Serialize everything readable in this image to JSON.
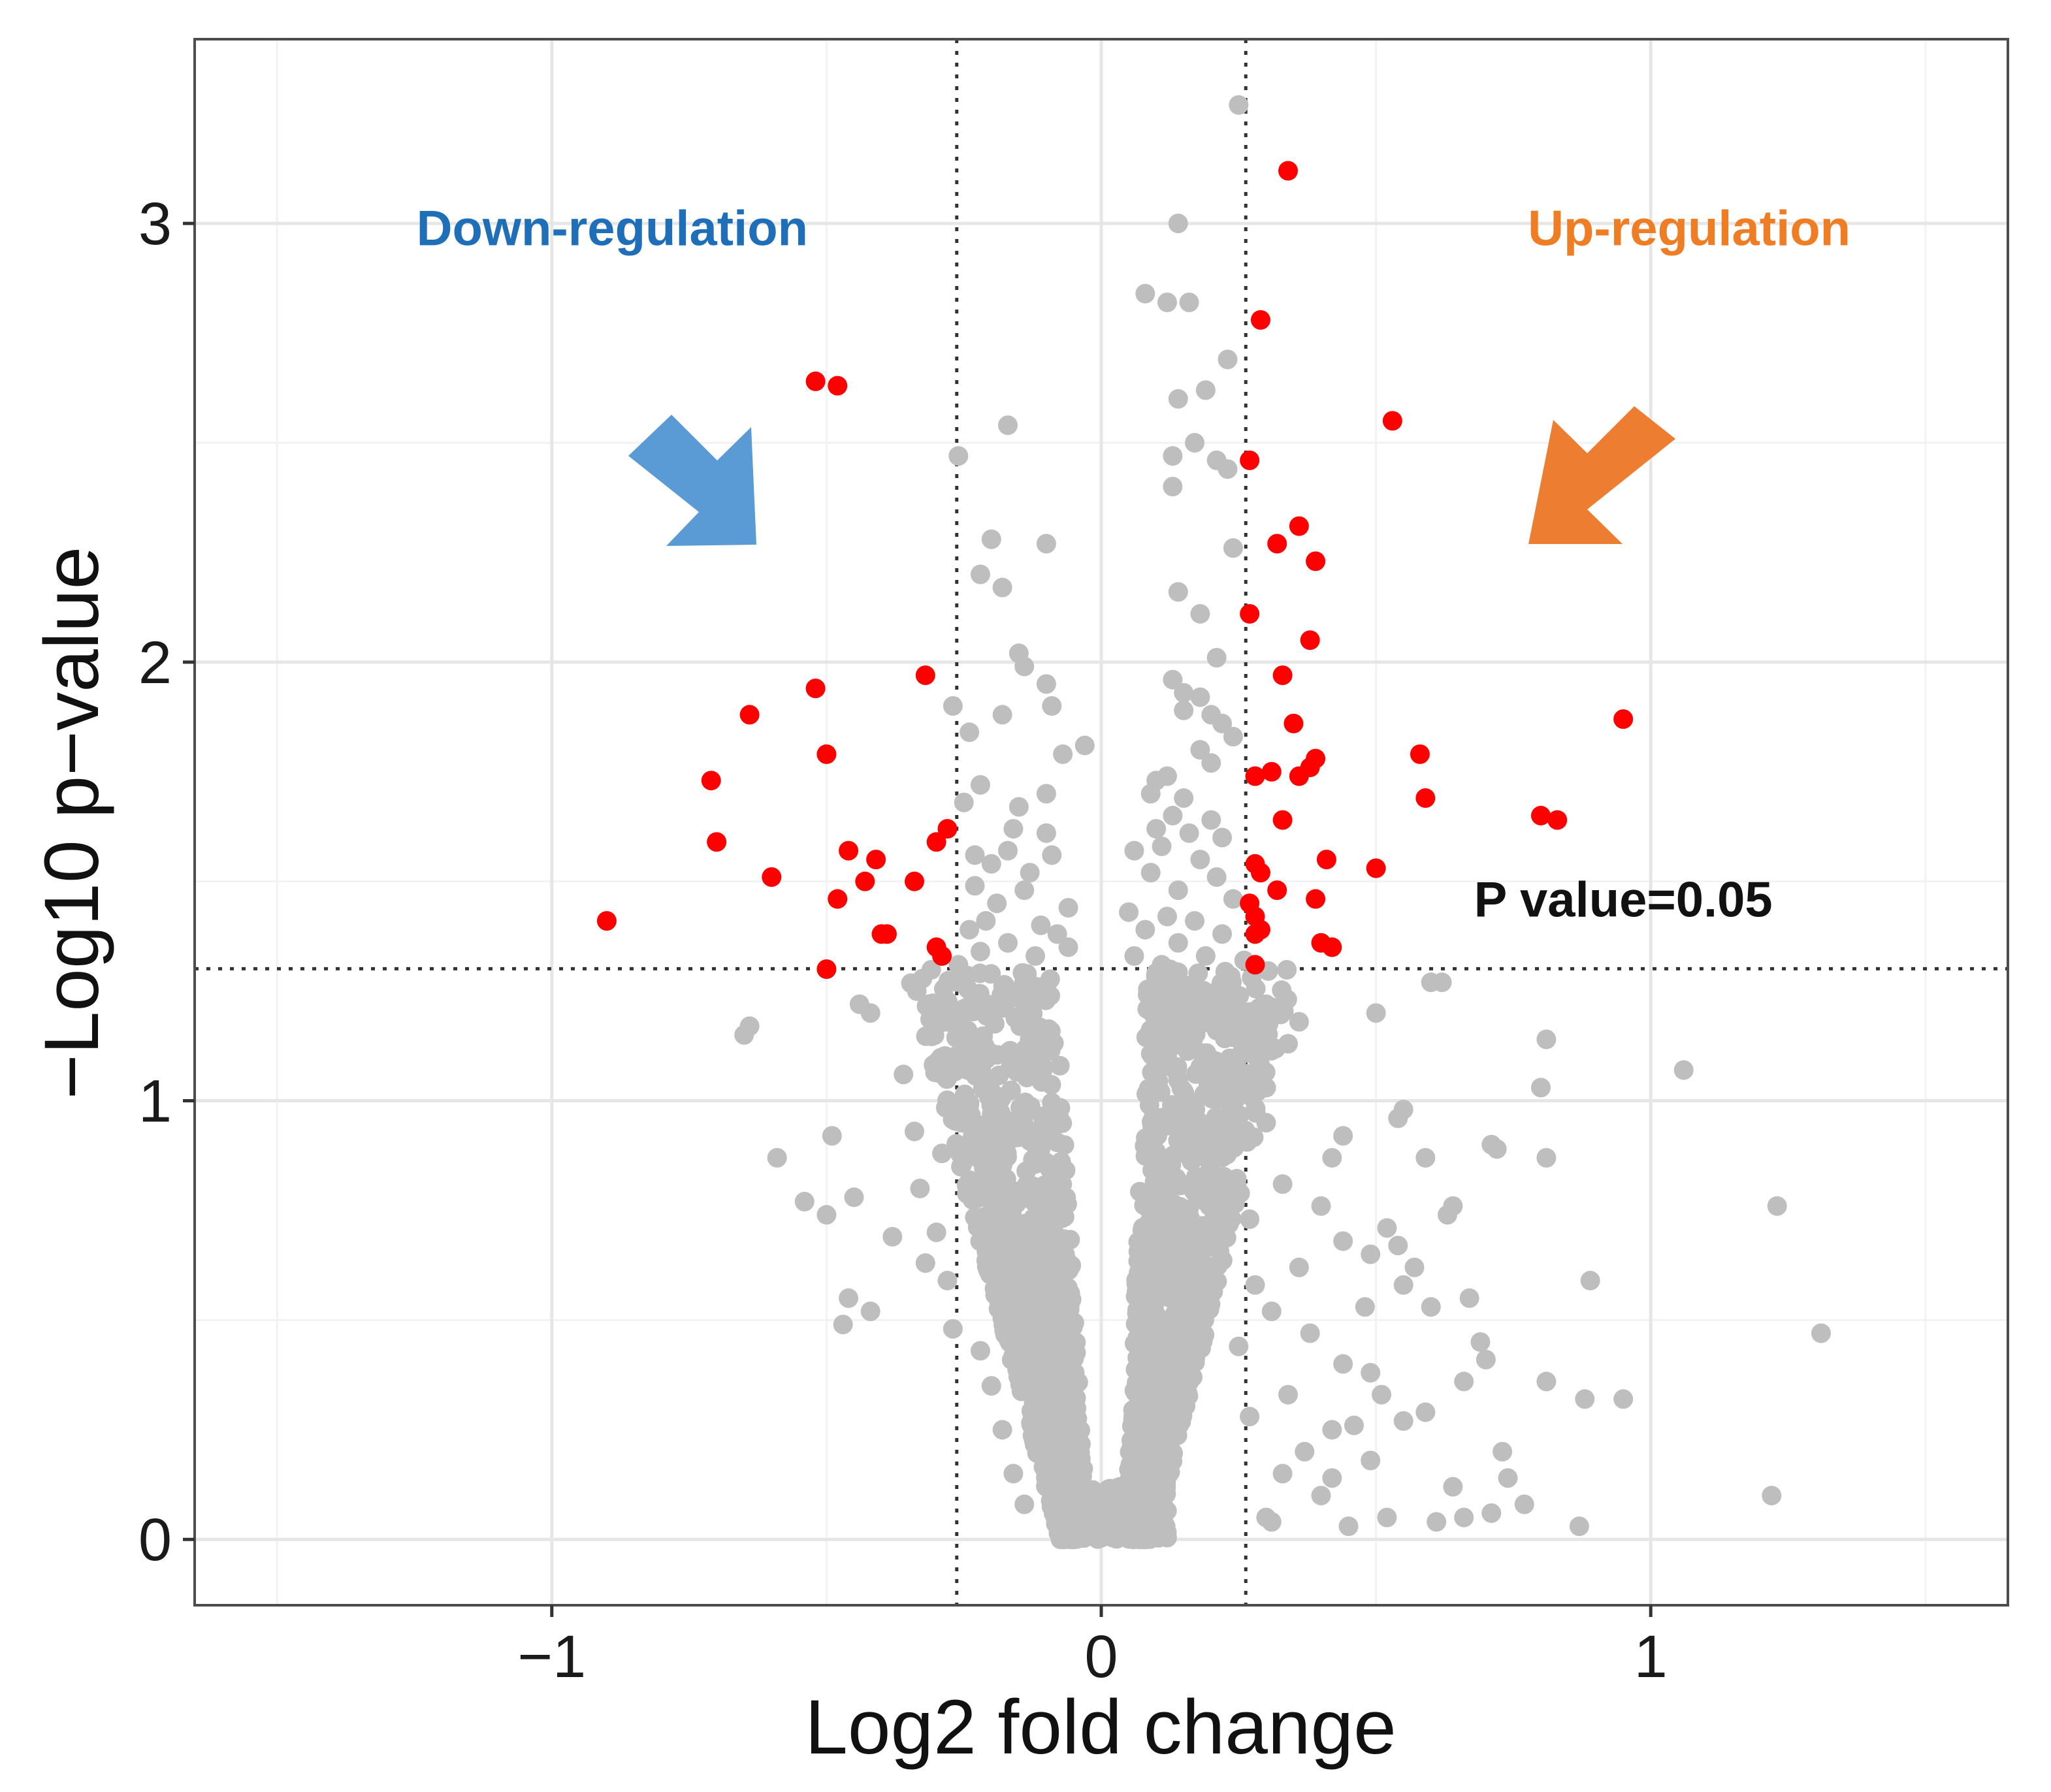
{
  "chart_data": {
    "type": "scatter",
    "title": "",
    "xlabel": "Log2 fold change",
    "ylabel": "−Log10 p−value",
    "xlim": [
      -1.65,
      1.65
    ],
    "ylim": [
      -0.15,
      3.42
    ],
    "x_ticks": [
      -1,
      0,
      1
    ],
    "x_tick_labels": [
      "−1",
      "0",
      "1"
    ],
    "y_ticks": [
      0,
      1,
      2,
      3
    ],
    "y_tick_labels": [
      "0",
      "1",
      "2",
      "3"
    ],
    "x_minor_grid": [
      -1.5,
      -0.5,
      0.5,
      1.5
    ],
    "y_minor_grid": [
      0.5,
      1.5,
      2.5
    ],
    "grid": true,
    "thresholds": {
      "log2fc_low": -0.263,
      "log2fc_high": 0.263,
      "neg_log10_p": 1.301
    },
    "colors": {
      "significant": "#ff0000",
      "not_significant": "#bebebe",
      "down_label": "#1f6fb8",
      "up_label": "#ee7d24",
      "down_arrow": "#5b9bd5",
      "up_arrow": "#ed7d31"
    },
    "series": [
      {
        "name": "significant",
        "points": [
          [
            -0.52,
            2.64
          ],
          [
            -0.48,
            2.63
          ],
          [
            -0.32,
            1.97
          ],
          [
            -0.52,
            1.94
          ],
          [
            -0.64,
            1.88
          ],
          [
            -0.5,
            1.79
          ],
          [
            -0.71,
            1.73
          ],
          [
            -0.28,
            1.62
          ],
          [
            -0.3,
            1.59
          ],
          [
            -0.7,
            1.59
          ],
          [
            -0.46,
            1.57
          ],
          [
            -0.41,
            1.55
          ],
          [
            -0.6,
            1.51
          ],
          [
            -0.43,
            1.5
          ],
          [
            -0.34,
            1.5
          ],
          [
            -0.48,
            1.46
          ],
          [
            -0.39,
            1.38
          ],
          [
            -0.4,
            1.38
          ],
          [
            -0.3,
            1.35
          ],
          [
            -0.29,
            1.33
          ],
          [
            -0.9,
            1.41
          ],
          [
            -0.5,
            1.3
          ],
          [
            0.34,
            3.12
          ],
          [
            0.29,
            2.78
          ],
          [
            0.53,
            2.55
          ],
          [
            0.27,
            2.46
          ],
          [
            0.36,
            2.31
          ],
          [
            0.32,
            2.27
          ],
          [
            0.39,
            2.23
          ],
          [
            0.27,
            2.11
          ],
          [
            0.38,
            2.05
          ],
          [
            0.33,
            1.97
          ],
          [
            0.35,
            1.86
          ],
          [
            0.95,
            1.87
          ],
          [
            0.39,
            1.78
          ],
          [
            0.58,
            1.79
          ],
          [
            0.31,
            1.75
          ],
          [
            0.38,
            1.76
          ],
          [
            0.36,
            1.74
          ],
          [
            0.28,
            1.74
          ],
          [
            0.59,
            1.69
          ],
          [
            0.8,
            1.65
          ],
          [
            0.83,
            1.64
          ],
          [
            0.33,
            1.64
          ],
          [
            0.41,
            1.55
          ],
          [
            0.28,
            1.54
          ],
          [
            0.29,
            1.52
          ],
          [
            0.5,
            1.53
          ],
          [
            0.32,
            1.48
          ],
          [
            0.39,
            1.46
          ],
          [
            0.27,
            1.45
          ],
          [
            0.28,
            1.42
          ],
          [
            0.29,
            1.39
          ],
          [
            0.28,
            1.38
          ],
          [
            0.4,
            1.36
          ],
          [
            0.42,
            1.35
          ],
          [
            0.28,
            1.31
          ]
        ]
      },
      {
        "name": "not significant",
        "points": [
          [
            0.25,
            3.27
          ],
          [
            0.14,
            3.0
          ],
          [
            0.08,
            2.84
          ],
          [
            0.12,
            2.82
          ],
          [
            0.16,
            2.82
          ],
          [
            0.23,
            2.69
          ],
          [
            0.19,
            2.62
          ],
          [
            0.14,
            2.6
          ],
          [
            -0.17,
            2.54
          ],
          [
            0.17,
            2.5
          ],
          [
            0.13,
            2.47
          ],
          [
            0.21,
            2.46
          ],
          [
            0.23,
            2.44
          ],
          [
            0.13,
            2.4
          ],
          [
            -0.26,
            2.47
          ],
          [
            -0.2,
            2.28
          ],
          [
            -0.1,
            2.27
          ],
          [
            0.24,
            2.26
          ],
          [
            -0.22,
            2.2
          ],
          [
            -0.18,
            2.17
          ],
          [
            0.14,
            2.16
          ],
          [
            0.18,
            2.11
          ],
          [
            -0.15,
            2.02
          ],
          [
            -0.14,
            1.99
          ],
          [
            0.21,
            2.01
          ],
          [
            -0.1,
            1.95
          ],
          [
            0.13,
            1.96
          ],
          [
            0.15,
            1.93
          ],
          [
            0.18,
            1.92
          ],
          [
            -0.27,
            1.9
          ],
          [
            -0.18,
            1.88
          ],
          [
            -0.09,
            1.9
          ],
          [
            0.15,
            1.89
          ],
          [
            0.2,
            1.88
          ],
          [
            0.22,
            1.86
          ],
          [
            -0.24,
            1.84
          ],
          [
            0.24,
            1.83
          ],
          [
            -0.03,
            1.81
          ],
          [
            -0.07,
            1.79
          ],
          [
            0.18,
            1.8
          ],
          [
            0.2,
            1.77
          ],
          [
            0.1,
            1.73
          ],
          [
            0.12,
            1.74
          ],
          [
            -0.22,
            1.72
          ],
          [
            -0.1,
            1.7
          ],
          [
            0.09,
            1.7
          ],
          [
            0.15,
            1.69
          ],
          [
            -0.25,
            1.68
          ],
          [
            -0.15,
            1.67
          ],
          [
            0.13,
            1.65
          ],
          [
            0.2,
            1.64
          ],
          [
            -0.16,
            1.62
          ],
          [
            -0.1,
            1.61
          ],
          [
            0.1,
            1.62
          ],
          [
            0.16,
            1.61
          ],
          [
            0.22,
            1.6
          ],
          [
            0.11,
            1.58
          ],
          [
            0.06,
            1.57
          ],
          [
            -0.23,
            1.56
          ],
          [
            -0.17,
            1.57
          ],
          [
            -0.09,
            1.56
          ],
          [
            0.18,
            1.55
          ],
          [
            -0.2,
            1.54
          ],
          [
            -0.13,
            1.52
          ],
          [
            0.09,
            1.52
          ],
          [
            0.21,
            1.51
          ],
          [
            -0.23,
            1.49
          ],
          [
            -0.14,
            1.48
          ],
          [
            0.14,
            1.48
          ],
          [
            0.24,
            1.46
          ],
          [
            -0.19,
            1.45
          ],
          [
            -0.06,
            1.44
          ],
          [
            0.05,
            1.43
          ],
          [
            0.12,
            1.42
          ],
          [
            -0.21,
            1.41
          ],
          [
            -0.11,
            1.4
          ],
          [
            0.17,
            1.41
          ],
          [
            -0.24,
            1.39
          ],
          [
            -0.08,
            1.38
          ],
          [
            0.08,
            1.39
          ],
          [
            0.22,
            1.38
          ],
          [
            -0.17,
            1.36
          ],
          [
            -0.06,
            1.35
          ],
          [
            0.14,
            1.36
          ],
          [
            -0.22,
            1.34
          ],
          [
            -0.12,
            1.33
          ],
          [
            0.06,
            1.33
          ],
          [
            0.19,
            1.33
          ],
          [
            -0.26,
            1.31
          ],
          [
            0.11,
            1.31
          ],
          [
            0.26,
            1.32
          ],
          [
            0.62,
            1.27
          ],
          [
            0.6,
            1.27
          ],
          [
            -0.44,
            1.22
          ],
          [
            -0.42,
            1.2
          ],
          [
            -0.64,
            1.17
          ],
          [
            -0.65,
            1.15
          ],
          [
            0.5,
            1.2
          ],
          [
            0.81,
            1.14
          ],
          [
            1.06,
            1.07
          ],
          [
            0.8,
            1.03
          ],
          [
            0.55,
            0.98
          ],
          [
            0.54,
            0.96
          ],
          [
            -0.15,
            1.25
          ],
          [
            -0.26,
            1.19
          ],
          [
            0.3,
            1.22
          ],
          [
            0.36,
            1.18
          ],
          [
            0.34,
            1.13
          ],
          [
            0.25,
            1.1
          ],
          [
            0.21,
            1.16
          ],
          [
            -0.36,
            1.06
          ],
          [
            -0.12,
            1.1
          ],
          [
            -0.24,
            0.99
          ],
          [
            -0.34,
            0.93
          ],
          [
            -0.49,
            0.92
          ],
          [
            0.3,
            0.95
          ],
          [
            0.44,
            0.92
          ],
          [
            0.71,
            0.9
          ],
          [
            0.72,
            0.89
          ],
          [
            0.81,
            0.87
          ],
          [
            -0.59,
            0.87
          ],
          [
            -0.54,
            0.77
          ],
          [
            -0.5,
            0.74
          ],
          [
            -0.45,
            0.78
          ],
          [
            0.42,
            0.87
          ],
          [
            0.59,
            0.87
          ],
          [
            0.64,
            0.76
          ],
          [
            0.63,
            0.74
          ],
          [
            0.52,
            0.71
          ],
          [
            0.44,
            0.68
          ],
          [
            0.49,
            0.65
          ],
          [
            0.54,
            0.67
          ],
          [
            0.57,
            0.62
          ],
          [
            0.55,
            0.58
          ],
          [
            0.89,
            0.59
          ],
          [
            0.67,
            0.55
          ],
          [
            0.48,
            0.53
          ],
          [
            0.6,
            0.53
          ],
          [
            -0.46,
            0.55
          ],
          [
            -0.47,
            0.49
          ],
          [
            -0.42,
            0.52
          ],
          [
            -0.38,
            0.69
          ],
          [
            -0.32,
            0.63
          ],
          [
            0.69,
            0.45
          ],
          [
            0.66,
            0.36
          ],
          [
            0.7,
            0.41
          ],
          [
            0.49,
            0.38
          ],
          [
            0.51,
            0.33
          ],
          [
            0.55,
            0.27
          ],
          [
            0.59,
            0.29
          ],
          [
            0.81,
            0.36
          ],
          [
            0.88,
            0.32
          ],
          [
            0.95,
            0.32
          ],
          [
            1.31,
            0.47
          ],
          [
            1.23,
            0.76
          ],
          [
            1.22,
            0.1
          ],
          [
            0.73,
            0.2
          ],
          [
            0.74,
            0.14
          ],
          [
            0.77,
            0.08
          ],
          [
            0.64,
            0.12
          ],
          [
            0.66,
            0.05
          ],
          [
            0.52,
            0.05
          ],
          [
            0.45,
            0.03
          ],
          [
            0.61,
            0.04
          ],
          [
            0.71,
            0.06
          ],
          [
            0.87,
            0.03
          ],
          [
            0.4,
            0.1
          ],
          [
            0.37,
            0.2
          ],
          [
            0.3,
            0.05
          ],
          [
            0.33,
            0.15
          ],
          [
            0.27,
            0.28
          ],
          [
            0.34,
            0.33
          ],
          [
            0.42,
            0.25
          ],
          [
            0.44,
            0.4
          ],
          [
            0.38,
            0.47
          ],
          [
            0.31,
            0.52
          ],
          [
            0.25,
            0.44
          ],
          [
            0.28,
            0.58
          ],
          [
            0.36,
            0.62
          ],
          [
            0.4,
            0.76
          ],
          [
            0.33,
            0.81
          ],
          [
            0.27,
            0.73
          ],
          [
            -0.16,
            0.15
          ],
          [
            -0.18,
            0.25
          ],
          [
            -0.2,
            0.35
          ],
          [
            -0.22,
            0.43
          ],
          [
            -0.27,
            0.48
          ],
          [
            -0.28,
            0.59
          ],
          [
            -0.11,
            0.2
          ],
          [
            -0.09,
            0.32
          ],
          [
            -0.14,
            0.08
          ],
          [
            -0.3,
            0.7
          ],
          [
            -0.33,
            0.8
          ],
          [
            -0.29,
            0.88
          ],
          [
            0.49,
            0.18
          ],
          [
            0.46,
            0.26
          ],
          [
            0.42,
            0.14
          ],
          [
            0.31,
            0.04
          ]
        ],
        "dense_region": {
          "left_arm": [
            [
              -0.22,
              1.3
            ],
            [
              -0.05,
              0.0
            ]
          ],
          "right_arm": [
            [
              0.22,
              1.3
            ],
            [
              0.07,
              0.0
            ]
          ]
        }
      }
    ],
    "annotations": [
      {
        "text": "Down-regulation",
        "x": -0.89,
        "y": 2.95,
        "color_key": "down_label"
      },
      {
        "text": "Up-regulation",
        "x": 1.07,
        "y": 2.95,
        "color_key": "up_label"
      },
      {
        "text": "P value=0.05",
        "x": 0.95,
        "y": 1.42,
        "color_key": "p_label"
      }
    ]
  }
}
